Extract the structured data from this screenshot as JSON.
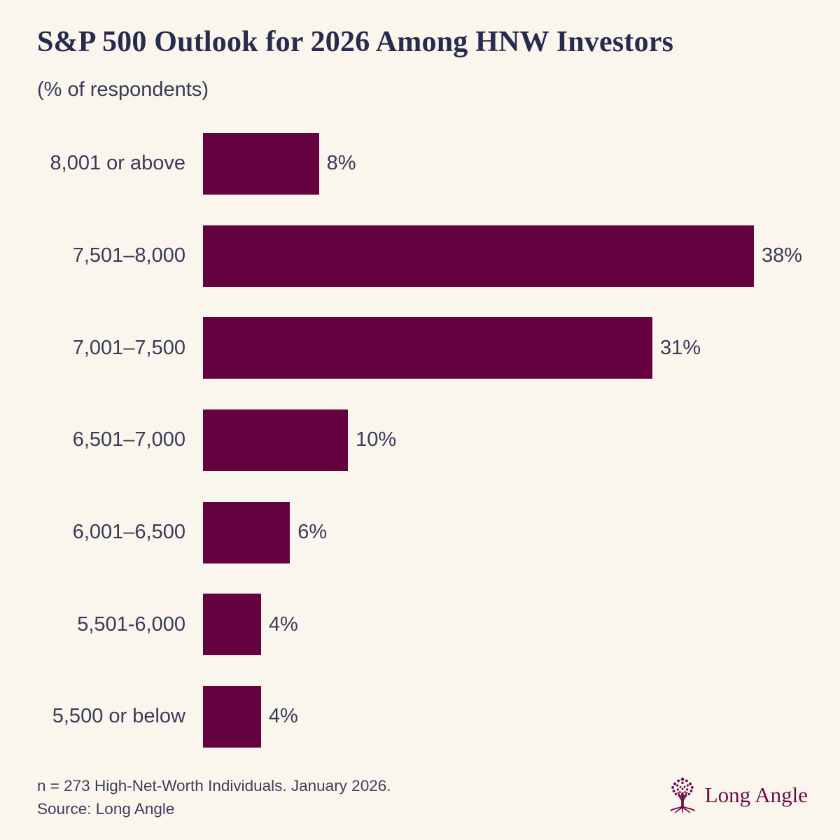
{
  "title": "S&P 500 Outlook for 2026 Among HNW Investors",
  "subtitle": "(% of respondents)",
  "chart_data": {
    "type": "bar",
    "orientation": "horizontal",
    "title": "S&P 500 Outlook for 2026 Among HNW Investors",
    "subtitle": "(% of respondents)",
    "categories": [
      "8,001 or above",
      "7,501–8,000",
      "7,001–7,500",
      "6,501–7,000",
      "6,001–6,500",
      "5,501-6,000",
      "5,500 or below"
    ],
    "values": [
      8,
      38,
      31,
      10,
      6,
      4,
      4
    ],
    "data_labels": [
      "8%",
      "38%",
      "31%",
      "10%",
      "6%",
      "4%",
      "4%"
    ],
    "xlim": [
      0,
      40
    ],
    "grid": false,
    "legend": false,
    "bar_color": "#650341"
  },
  "footer": {
    "note_line1": "n = 273 High-Net-Worth Individuals. January 2026.",
    "note_line2": "Source: Long Angle"
  },
  "logo": {
    "text": "Long Angle",
    "icon": "tree-icon",
    "color": "#6E0D46"
  },
  "colors": {
    "background": "#FBF6ED",
    "bar": "#650341",
    "title_text": "#272B4E",
    "label_text": "#363B58",
    "footer_text": "#3A3F5A"
  }
}
